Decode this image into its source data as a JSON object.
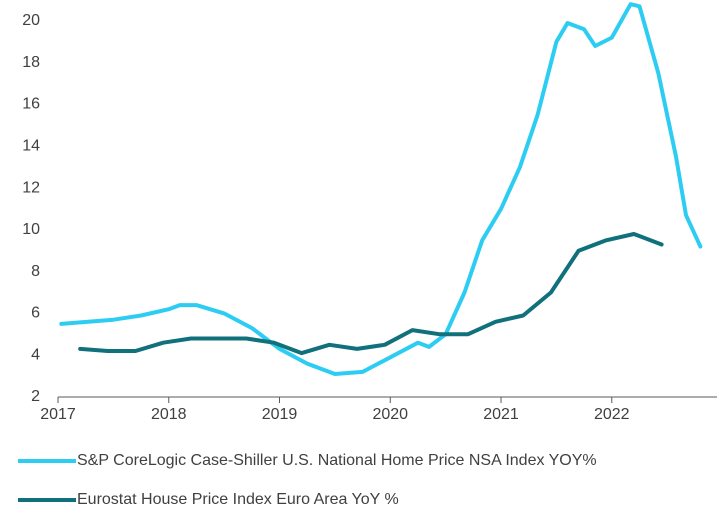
{
  "chart_data": {
    "type": "line",
    "xlim": [
      2017,
      2022.95
    ],
    "xticks": [
      2017,
      2018,
      2019,
      2020,
      2021,
      2022
    ],
    "ylim": [
      2,
      21
    ],
    "yticks": [
      2,
      4,
      6,
      8,
      10,
      12,
      14,
      16,
      18,
      20
    ],
    "legend": "bottom",
    "series": [
      {
        "name": "S&P CoreLogic Case-Shiller U.S. National Home Price NSA Index YOY%",
        "color": "#2dcdf3",
        "x": [
          2017.03,
          2017.5,
          2017.75,
          2018.0,
          2018.1,
          2018.25,
          2018.5,
          2018.75,
          2019.0,
          2019.25,
          2019.5,
          2019.75,
          2020.0,
          2020.25,
          2020.35,
          2020.5,
          2020.67,
          2020.83,
          2021.0,
          2021.17,
          2021.33,
          2021.5,
          2021.6,
          2021.75,
          2021.85,
          2022.0,
          2022.17,
          2022.25,
          2022.42,
          2022.58,
          2022.67,
          2022.8
        ],
        "values": [
          5.5,
          5.7,
          5.9,
          6.2,
          6.4,
          6.4,
          6.0,
          5.3,
          4.3,
          3.6,
          3.1,
          3.2,
          3.9,
          4.6,
          4.4,
          5.0,
          7.0,
          9.5,
          11.0,
          13.0,
          15.5,
          19.0,
          19.9,
          19.6,
          18.8,
          19.2,
          20.8,
          20.7,
          17.5,
          13.5,
          10.7,
          9.2
        ]
      },
      {
        "name": "Eurostat House Price Index Euro Area YoY %",
        "color": "#10707c",
        "x": [
          2017.2,
          2017.45,
          2017.7,
          2017.95,
          2018.2,
          2018.45,
          2018.7,
          2018.95,
          2019.2,
          2019.45,
          2019.7,
          2019.95,
          2020.2,
          2020.45,
          2020.7,
          2020.95,
          2021.2,
          2021.45,
          2021.7,
          2021.95,
          2022.2,
          2022.45
        ],
        "values": [
          4.3,
          4.2,
          4.2,
          4.6,
          4.8,
          4.8,
          4.8,
          4.6,
          4.1,
          4.5,
          4.3,
          4.5,
          5.2,
          5.0,
          5.0,
          5.6,
          5.9,
          7.0,
          9.0,
          9.5,
          9.8,
          9.3
        ]
      }
    ]
  }
}
